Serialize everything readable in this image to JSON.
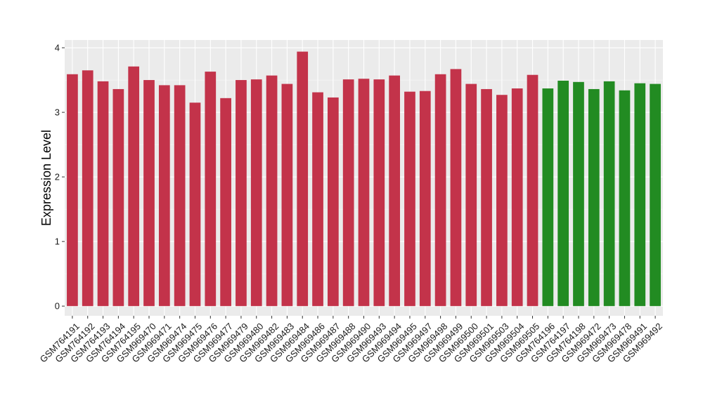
{
  "chart_data": {
    "type": "bar",
    "title": "",
    "xlabel": "",
    "ylabel": "Expression Level",
    "ylim": [
      -0.15,
      4.12
    ],
    "yticks": [
      0,
      1,
      2,
      3,
      4
    ],
    "grid": true,
    "legend": "none",
    "colors": {
      "panel_background": "#ebebeb",
      "grid_major": "#ffffff",
      "group_red": "#c3334a",
      "group_green": "#228b22"
    },
    "categories": [
      "GSM764191",
      "GSM764192",
      "GSM764193",
      "GSM764194",
      "GSM764195",
      "GSM969470",
      "GSM969471",
      "GSM969474",
      "GSM969475",
      "GSM969476",
      "GSM969477",
      "GSM969479",
      "GSM969480",
      "GSM969482",
      "GSM969483",
      "GSM969484",
      "GSM969486",
      "GSM969487",
      "GSM969488",
      "GSM969490",
      "GSM969493",
      "GSM969494",
      "GSM969495",
      "GSM969497",
      "GSM969498",
      "GSM969499",
      "GSM969500",
      "GSM969501",
      "GSM969503",
      "GSM969504",
      "GSM969505",
      "GSM764196",
      "GSM764197",
      "GSM764198",
      "GSM969472",
      "GSM969473",
      "GSM969478",
      "GSM969491",
      "GSM969492"
    ],
    "values": [
      3.59,
      3.65,
      3.48,
      3.36,
      3.71,
      3.5,
      3.42,
      3.42,
      3.15,
      3.63,
      3.22,
      3.5,
      3.51,
      3.57,
      3.44,
      3.94,
      3.31,
      3.23,
      3.51,
      3.52,
      3.51,
      3.57,
      3.32,
      3.33,
      3.59,
      3.67,
      3.44,
      3.36,
      3.27,
      3.37,
      3.58,
      3.37,
      3.49,
      3.47,
      3.36,
      3.48,
      3.34,
      3.45,
      3.44
    ],
    "bar_colors": [
      "#c3334a",
      "#c3334a",
      "#c3334a",
      "#c3334a",
      "#c3334a",
      "#c3334a",
      "#c3334a",
      "#c3334a",
      "#c3334a",
      "#c3334a",
      "#c3334a",
      "#c3334a",
      "#c3334a",
      "#c3334a",
      "#c3334a",
      "#c3334a",
      "#c3334a",
      "#c3334a",
      "#c3334a",
      "#c3334a",
      "#c3334a",
      "#c3334a",
      "#c3334a",
      "#c3334a",
      "#c3334a",
      "#c3334a",
      "#c3334a",
      "#c3334a",
      "#c3334a",
      "#c3334a",
      "#c3334a",
      "#228b22",
      "#228b22",
      "#228b22",
      "#228b22",
      "#228b22",
      "#228b22",
      "#228b22",
      "#228b22"
    ]
  }
}
